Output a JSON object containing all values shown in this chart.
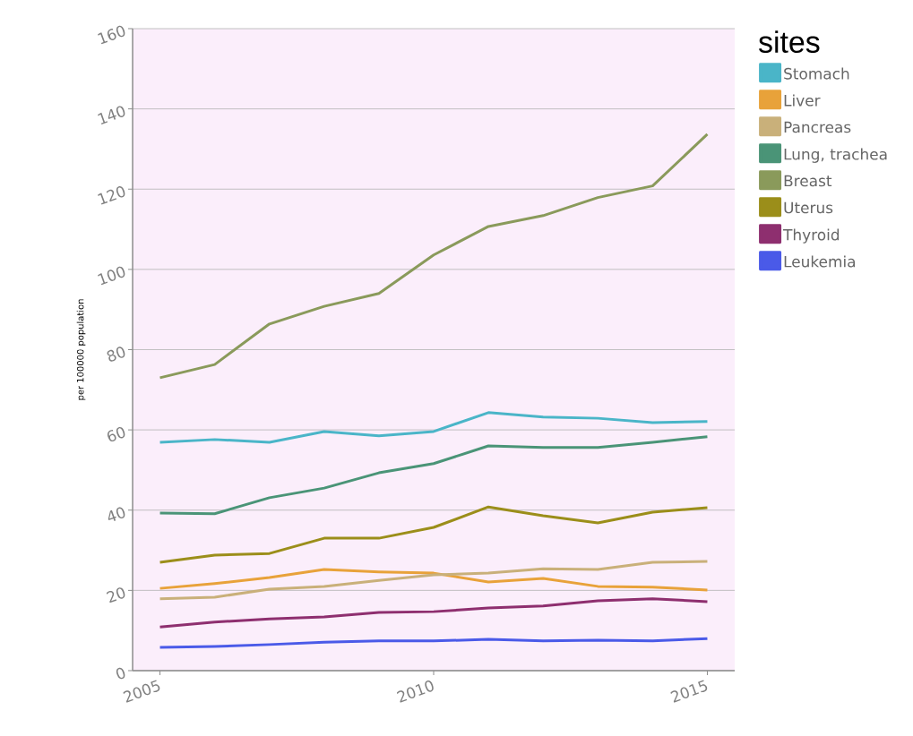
{
  "chart_data": {
    "type": "line",
    "ylabel": "per 100000 population",
    "legend_title": "sites",
    "x": [
      2005,
      2006,
      2007,
      2008,
      2009,
      2010,
      2011,
      2012,
      2013,
      2014,
      2015
    ],
    "xlim": [
      2004.5,
      2015.5
    ],
    "xticks": [
      2005,
      2010,
      2015
    ],
    "ylim": [
      0,
      160
    ],
    "yticks": [
      0,
      20,
      40,
      60,
      80,
      100,
      120,
      140,
      160
    ],
    "grid": "y",
    "legend": "top right",
    "marker": "none",
    "line_style": "solid",
    "series": [
      {
        "name": "Stomach",
        "color": "#4ab5c8",
        "values": [
          56.9,
          57.6,
          56.9,
          59.6,
          58.5,
          59.6,
          64.3,
          63.2,
          62.9,
          61.8,
          62.1
        ]
      },
      {
        "name": "Liver",
        "color": "#e8a23a",
        "values": [
          20.5,
          21.7,
          23.2,
          25.2,
          24.6,
          24.3,
          22.1,
          23.0,
          21.0,
          20.8,
          20.1
        ]
      },
      {
        "name": "Pancreas",
        "color": "#c9b07a",
        "values": [
          17.9,
          18.3,
          20.3,
          21.0,
          22.5,
          23.9,
          24.3,
          25.4,
          25.2,
          27.0,
          27.2
        ]
      },
      {
        "name": "Lung, trachea",
        "color": "#4a9477",
        "values": [
          39.3,
          39.1,
          43.1,
          45.5,
          49.3,
          51.6,
          56.0,
          55.6,
          55.6,
          56.9,
          58.3
        ]
      },
      {
        "name": "Breast",
        "color": "#8a9a5b",
        "values": [
          73.0,
          76.3,
          86.4,
          90.8,
          94.0,
          103.6,
          110.7,
          113.4,
          117.9,
          120.8,
          133.7
        ]
      },
      {
        "name": "Uterus",
        "color": "#9b8e1a",
        "values": [
          27.0,
          28.8,
          29.2,
          33.0,
          33.0,
          35.7,
          40.8,
          38.6,
          36.8,
          39.5,
          40.6
        ]
      },
      {
        "name": "Thyroid",
        "color": "#8e2f6f",
        "values": [
          10.9,
          12.1,
          12.9,
          13.4,
          14.5,
          14.7,
          15.6,
          16.1,
          17.4,
          17.9,
          17.2
        ]
      },
      {
        "name": "Leukemia",
        "color": "#4a5ae8",
        "values": [
          5.8,
          6.0,
          6.5,
          7.1,
          7.4,
          7.4,
          7.8,
          7.4,
          7.6,
          7.4,
          8.0
        ]
      }
    ]
  }
}
